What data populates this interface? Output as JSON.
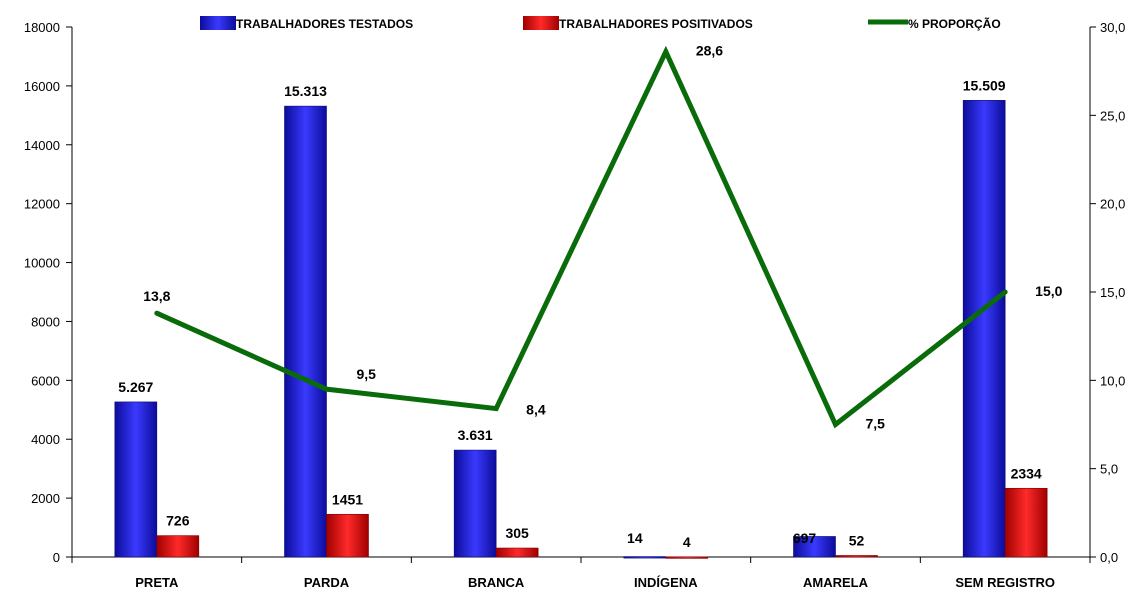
{
  "chart_data": {
    "type": "bar",
    "categories": [
      "PRETA",
      "PARDA",
      "BRANCA",
      "INDÍGENA",
      "AMARELA",
      "SEM REGISTRO"
    ],
    "series": [
      {
        "name": "TRABALHADORES TESTADOS",
        "type": "bar",
        "axis": "left",
        "color": "#1f1fe0",
        "values": [
          5267,
          15313,
          3631,
          14,
          697,
          15509
        ],
        "labels": [
          "5.267",
          "15.313",
          "3.631",
          "14",
          "697",
          "15.509"
        ]
      },
      {
        "name": "TRABALHADORES POSITIVADOS",
        "type": "bar",
        "axis": "left",
        "color": "#e81010",
        "values": [
          726,
          1451,
          305,
          4,
          52,
          2334
        ],
        "labels": [
          "726",
          "1451",
          "305",
          "4",
          "52",
          "2334"
        ]
      },
      {
        "name": "% PROPORÇÃO",
        "type": "line",
        "axis": "right",
        "color": "#0a6b0a",
        "values": [
          13.8,
          9.5,
          8.4,
          28.6,
          7.5,
          15.0
        ],
        "labels": [
          "13,8",
          "9,5",
          "8,4",
          "28,6",
          "7,5",
          "15,0"
        ]
      }
    ],
    "y_left": {
      "range": [
        0,
        18000
      ],
      "ticks": [
        "0",
        "2000",
        "4000",
        "6000",
        "8000",
        "10000",
        "12000",
        "14000",
        "16000",
        "18000"
      ],
      "tick_values": [
        0,
        2000,
        4000,
        6000,
        8000,
        10000,
        12000,
        14000,
        16000,
        18000
      ]
    },
    "y_right": {
      "range": [
        0,
        30
      ],
      "ticks": [
        "0,0",
        "5,0",
        "10,0",
        "15,0",
        "20,0",
        "25,0",
        "30,0"
      ],
      "tick_values": [
        0,
        5,
        10,
        15,
        20,
        25,
        30
      ]
    },
    "grid": false,
    "legend_position": "top"
  }
}
